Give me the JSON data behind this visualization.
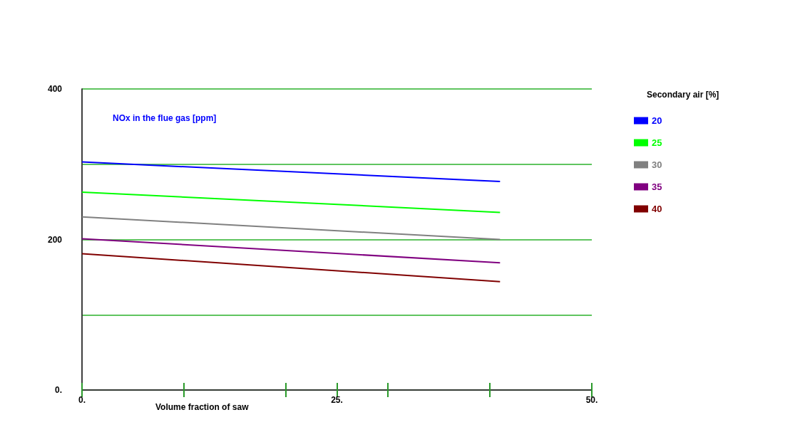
{
  "chart_data": {
    "type": "line",
    "ylabel": "NOx in the flue gas [ppm]",
    "xlabel": "Volume fraction of saw",
    "legend_title": "Secondary air [%]",
    "x": [
      0,
      41
    ],
    "series": [
      {
        "name": "20",
        "color": "#0000ff",
        "values": [
          303,
          277
        ]
      },
      {
        "name": "25",
        "color": "#00ff00",
        "values": [
          263,
          236
        ]
      },
      {
        "name": "30",
        "color": "#808080",
        "values": [
          230,
          200
        ]
      },
      {
        "name": "35",
        "color": "#800080",
        "values": [
          201,
          169
        ]
      },
      {
        "name": "40",
        "color": "#800000",
        "values": [
          181,
          144
        ]
      }
    ],
    "xlim": [
      0,
      50
    ],
    "xticks": [
      {
        "value": 0,
        "label": "0."
      },
      {
        "value": 10,
        "label": null
      },
      {
        "value": 20,
        "label": null
      },
      {
        "value": 25,
        "label": "25."
      },
      {
        "value": 30,
        "label": null
      },
      {
        "value": 40,
        "label": null
      },
      {
        "value": 50,
        "label": "50."
      }
    ],
    "ylim": [
      0,
      400
    ],
    "yticks": [
      {
        "value": 0,
        "label": "0."
      },
      {
        "value": 100,
        "label": null
      },
      {
        "value": 200,
        "label": "200"
      },
      {
        "value": 300,
        "label": null
      },
      {
        "value": 400,
        "label": "400"
      }
    ],
    "grid": "y",
    "legend": "right",
    "marker": "none",
    "line_style": "solid"
  }
}
